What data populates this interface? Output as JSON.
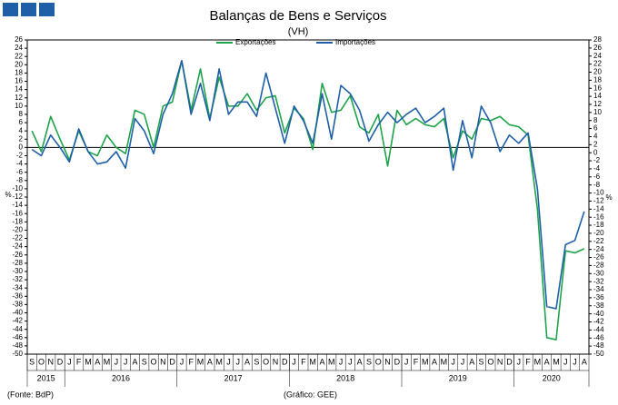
{
  "chart_data": {
    "type": "line",
    "title": "Balanças de Bens e Serviços",
    "subtitle": "(VH)",
    "y_label": "%",
    "source": "(Fonte: BdP)",
    "credit": "(Gráfico: GEE)",
    "categories": [
      "S",
      "O",
      "N",
      "D",
      "J",
      "F",
      "M",
      "A",
      "M",
      "J",
      "J",
      "A",
      "S",
      "O",
      "N",
      "D",
      "J",
      "F",
      "M",
      "A",
      "M",
      "J",
      "J",
      "A",
      "S",
      "O",
      "N",
      "D",
      "J",
      "F",
      "M",
      "A",
      "M",
      "J",
      "J",
      "A",
      "S",
      "O",
      "N",
      "D",
      "J",
      "F",
      "M",
      "A",
      "M",
      "J",
      "J",
      "A",
      "S",
      "O",
      "N",
      "D",
      "J",
      "F",
      "M",
      "A",
      "M",
      "J",
      "J",
      "A"
    ],
    "year_groups": [
      {
        "label": "2015",
        "count": 4
      },
      {
        "label": "2016",
        "count": 12
      },
      {
        "label": "2017",
        "count": 12
      },
      {
        "label": "2018",
        "count": 12
      },
      {
        "label": "2019",
        "count": 12
      },
      {
        "label": "2020",
        "count": 8
      }
    ],
    "series": [
      {
        "name": "Exportações",
        "color": "#1fa34a",
        "values": [
          4,
          -1,
          7.5,
          2,
          -3,
          4,
          -1,
          -2,
          3,
          0,
          -1.5,
          9,
          8,
          0,
          10,
          11,
          21,
          9,
          19,
          7,
          17,
          10,
          10,
          13,
          9,
          12,
          12.5,
          3.5,
          9.5,
          7,
          -0.5,
          15.5,
          8.5,
          9,
          12.5,
          5,
          3.5,
          8,
          -4.5,
          9,
          5.5,
          7,
          5.5,
          5,
          7,
          -2.5,
          4,
          2,
          7,
          6.5,
          7.5,
          5.5,
          5,
          3,
          -15,
          -46,
          -46.5,
          -25,
          -25.5,
          -24.5
        ]
      },
      {
        "name": "Importações",
        "color": "#1f5fa8",
        "values": [
          -0.5,
          -2,
          3,
          0,
          -3.5,
          4.5,
          -1,
          -4,
          -3.5,
          -1,
          -5,
          7,
          4,
          -1.5,
          8,
          13,
          21,
          8,
          15.5,
          6.5,
          19,
          8,
          11,
          11,
          7.5,
          18,
          9.5,
          1,
          10,
          6.5,
          1,
          13,
          2,
          15,
          13,
          9,
          1.5,
          5.5,
          8.5,
          6,
          8,
          9.5,
          6,
          7.5,
          9.5,
          -5.5,
          6.5,
          -2.5,
          10,
          6,
          -1,
          3,
          1,
          3.5,
          -10,
          -38.5,
          -39,
          -23.5,
          -22.5,
          -15.5
        ]
      }
    ],
    "ylim": [
      -50,
      26
    ],
    "yticks": [
      -50,
      -48,
      -46,
      -44,
      -42,
      -40,
      -38,
      -36,
      -34,
      -32,
      -30,
      -28,
      -26,
      -24,
      -22,
      -20,
      -18,
      -16,
      -14,
      -12,
      -10,
      -8,
      -6,
      -4,
      -2,
      0,
      2,
      4,
      6,
      8,
      10,
      12,
      14,
      16,
      18,
      20,
      22,
      24,
      26
    ],
    "y2lim": [
      -50,
      28
    ],
    "y2ticks": [
      -50,
      -48,
      -46,
      -44,
      -42,
      -40,
      -38,
      -36,
      -34,
      -32,
      -30,
      -28,
      -26,
      -24,
      -22,
      -20,
      -18,
      -16,
      -14,
      -12,
      -10,
      -8,
      -6,
      -4,
      -2,
      0,
      2,
      4,
      6,
      8,
      10,
      12,
      14,
      16,
      18,
      20,
      22,
      24,
      26,
      28
    ]
  }
}
